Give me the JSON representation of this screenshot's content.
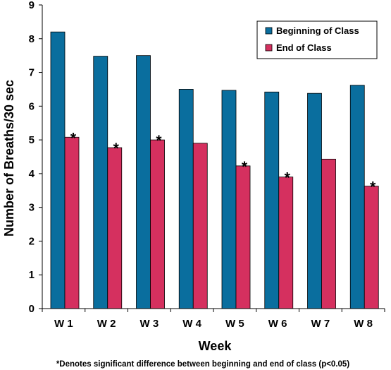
{
  "chart_data": {
    "type": "bar",
    "categories": [
      "W 1",
      "W 2",
      "W 3",
      "W 4",
      "W 5",
      "W 6",
      "W 7",
      "W 8"
    ],
    "series": [
      {
        "name": "Beginning of Class",
        "color": "#0a6e9e",
        "values": [
          8.2,
          7.48,
          7.5,
          6.5,
          6.47,
          6.42,
          6.38,
          6.62
        ]
      },
      {
        "name": "End of Class",
        "color": "#d5305f",
        "values": [
          5.08,
          4.77,
          5.0,
          4.9,
          4.23,
          3.9,
          4.43,
          3.63
        ]
      }
    ],
    "significant_marker": "*",
    "significant": [
      true,
      true,
      true,
      false,
      true,
      true,
      false,
      true
    ],
    "xlabel": "Week",
    "ylabel": "Number of Breaths/30 sec",
    "ylim": [
      0,
      9
    ],
    "yticks": [
      0,
      1,
      2,
      3,
      4,
      5,
      6,
      7,
      8,
      9
    ],
    "grid": false,
    "legend_position": "top-right",
    "footnote": "*Denotes significant difference between beginning and end of class (p<0.05)"
  }
}
